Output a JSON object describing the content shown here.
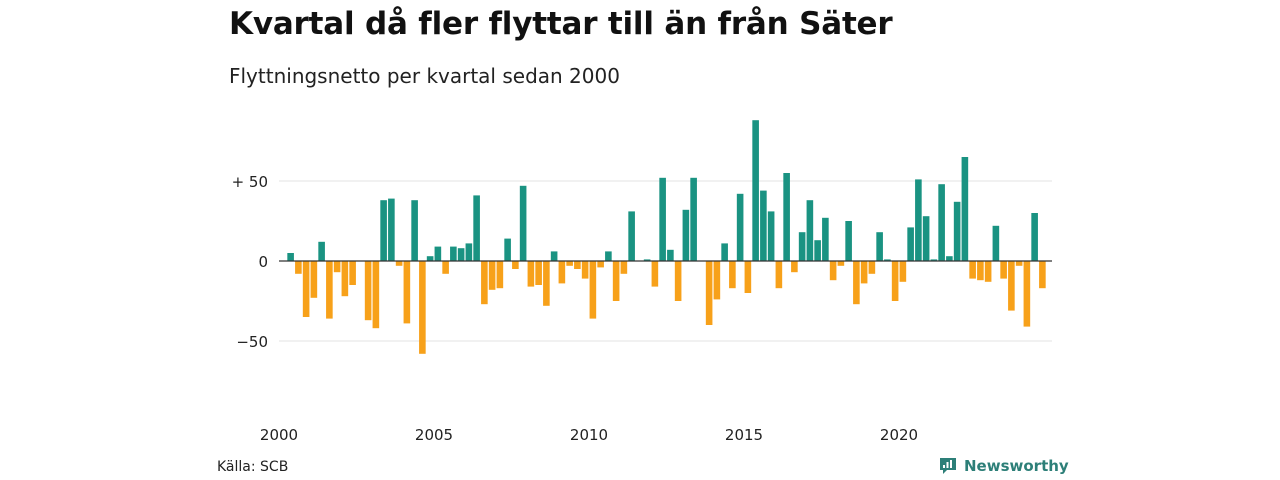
{
  "title": "Kvartal då fler flyttar till än från Säter",
  "subtitle": "Flyttningsnetto per kvartal sedan 2000",
  "source": "Källa: SCB",
  "brand": {
    "name": "Newsworthy",
    "icon": "newsworthy-logo-icon"
  },
  "colors": {
    "positive": "#1a9382",
    "negative": "#f7a11a",
    "grid": "#e3e3e3",
    "zero": "#333333"
  },
  "chart_data": {
    "type": "bar",
    "grid": true,
    "ylim": [
      -85,
      85
    ],
    "yticks": [
      {
        "value": 50,
        "label": "+ 50"
      },
      {
        "value": 0,
        "label": "0"
      },
      {
        "value": -50,
        "label": "−50"
      }
    ],
    "xticks": [
      {
        "index": 0,
        "label": "2000"
      },
      {
        "index": 20,
        "label": "2005"
      },
      {
        "index": 40,
        "label": "2010"
      },
      {
        "index": 60,
        "label": "2015"
      },
      {
        "index": 80,
        "label": "2020"
      }
    ],
    "start_year": 2000,
    "values": [
      0,
      5,
      -8,
      -35,
      -23,
      12,
      -36,
      -7,
      -22,
      -15,
      0,
      -37,
      -42,
      38,
      39,
      -3,
      -39,
      38,
      -58,
      3,
      9,
      -8,
      9,
      8,
      11,
      41,
      -27,
      -18,
      -17,
      14,
      -5,
      47,
      -16,
      -15,
      -28,
      6,
      -14,
      -3,
      -5,
      -11,
      -36,
      -4,
      6,
      -25,
      -8,
      31,
      0,
      1,
      -16,
      52,
      7,
      -25,
      32,
      52,
      0,
      -40,
      -24,
      11,
      -17,
      42,
      -20,
      88,
      44,
      31,
      -17,
      55,
      -7,
      18,
      38,
      13,
      27,
      -12,
      -3,
      25,
      -27,
      -14,
      -8,
      18,
      1,
      -25,
      -13,
      21,
      51,
      28,
      1,
      48,
      3,
      37,
      65,
      -11,
      -12,
      -13,
      22,
      -11,
      -31,
      -3,
      -41,
      30,
      -17
    ]
  }
}
